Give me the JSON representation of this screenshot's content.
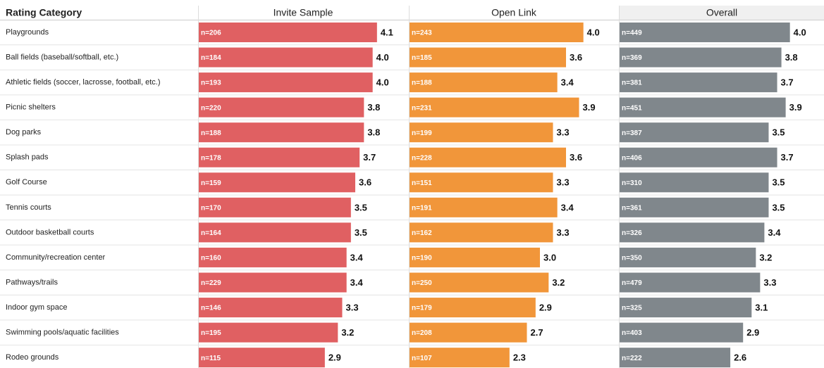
{
  "chart_data": {
    "type": "bar",
    "orientation": "horizontal",
    "category_label": "Rating Category",
    "categories": [
      "Playgrounds",
      "Ball fields (baseball/softball, etc.)",
      "Athletic fields (soccer, lacrosse, football, etc.)",
      "Picnic shelters",
      "Dog parks",
      "Splash pads",
      "Golf Course",
      "Tennis courts",
      "Outdoor basketball courts",
      "Community/recreation center",
      "Pathways/trails",
      "Indoor gym space",
      "Swimming pools/aquatic facilities",
      "Rodeo grounds"
    ],
    "xlim": [
      0,
      4.8
    ],
    "series": [
      {
        "name": "Invite Sample",
        "color": "#e06062",
        "values": [
          4.1,
          4.0,
          4.0,
          3.8,
          3.8,
          3.7,
          3.6,
          3.5,
          3.5,
          3.4,
          3.4,
          3.3,
          3.2,
          2.9
        ],
        "value_labels": [
          "4.1",
          "4.0",
          "4.0",
          "3.8",
          "3.8",
          "3.7",
          "3.6",
          "3.5",
          "3.5",
          "3.4",
          "3.4",
          "3.3",
          "3.2",
          "2.9"
        ],
        "n_labels": [
          "n=206",
          "n=184",
          "n=193",
          "n=220",
          "n=188",
          "n=178",
          "n=159",
          "n=170",
          "n=164",
          "n=160",
          "n=229",
          "n=146",
          "n=195",
          "n=115"
        ]
      },
      {
        "name": "Open Link",
        "color": "#f1963a",
        "values": [
          4.0,
          3.6,
          3.4,
          3.9,
          3.3,
          3.6,
          3.3,
          3.4,
          3.3,
          3.0,
          3.2,
          2.9,
          2.7,
          2.3
        ],
        "value_labels": [
          "4.0",
          "3.6",
          "3.4",
          "3.9",
          "3.3",
          "3.6",
          "3.3",
          "3.4",
          "3.3",
          "3.0",
          "3.2",
          "2.9",
          "2.7",
          "2.3"
        ],
        "n_labels": [
          "n=243",
          "n=185",
          "n=188",
          "n=231",
          "n=199",
          "n=228",
          "n=151",
          "n=191",
          "n=162",
          "n=190",
          "n=250",
          "n=179",
          "n=208",
          "n=107"
        ]
      },
      {
        "name": "Overall",
        "color": "#80878c",
        "values": [
          4.0,
          3.8,
          3.7,
          3.9,
          3.5,
          3.7,
          3.5,
          3.5,
          3.4,
          3.2,
          3.3,
          3.1,
          2.9,
          2.6
        ],
        "value_labels": [
          "4.0",
          "3.8",
          "3.7",
          "3.9",
          "3.5",
          "3.7",
          "3.5",
          "3.5",
          "3.4",
          "3.2",
          "3.3",
          "3.1",
          "2.9",
          "2.6"
        ],
        "n_labels": [
          "n=449",
          "n=369",
          "n=381",
          "n=451",
          "n=387",
          "n=406",
          "n=310",
          "n=361",
          "n=326",
          "n=350",
          "n=479",
          "n=325",
          "n=403",
          "n=222"
        ]
      }
    ]
  }
}
